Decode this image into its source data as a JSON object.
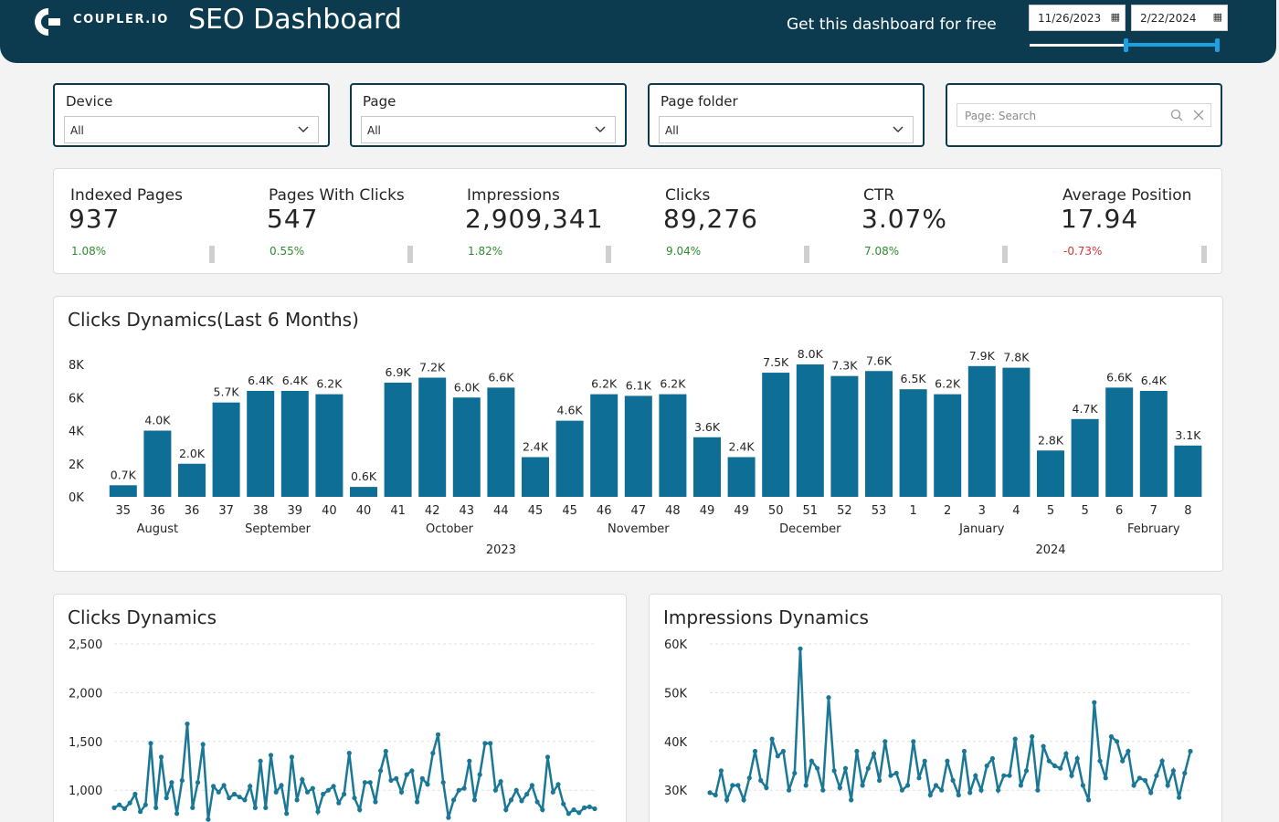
{
  "header": {
    "logo_text": "COUPLER.IO",
    "title": "SEO Dashboard",
    "cta": "Get this dashboard for free",
    "date_start": "11/26/2023",
    "date_end": "2/22/2024",
    "calendar_icon": "calendar-icon",
    "colors": {
      "bg": "#0c3a4f",
      "accent": "#1ba1e2"
    }
  },
  "filters": [
    {
      "label": "Device",
      "value": "All"
    },
    {
      "label": "Page",
      "value": "All"
    },
    {
      "label": "Page folder",
      "value": "All"
    }
  ],
  "search": {
    "placeholder": "Page: Search"
  },
  "kpis": [
    {
      "label": "Indexed Pages",
      "value": "937",
      "delta": "1.08%",
      "trend": "up"
    },
    {
      "label": "Pages With Clicks",
      "value": "547",
      "delta": "0.55%",
      "trend": "up"
    },
    {
      "label": "Impressions",
      "value": "2,909,341",
      "delta": "1.82%",
      "trend": "up"
    },
    {
      "label": "Clicks",
      "value": "89,276",
      "delta": "9.04%",
      "trend": "up"
    },
    {
      "label": "CTR",
      "value": "3.07%",
      "delta": "7.08%",
      "trend": "up"
    },
    {
      "label": "Average Position",
      "value": "17.94",
      "delta": "-0.73%",
      "trend": "down"
    }
  ],
  "colors": {
    "positive": "#2e8b2e",
    "negative": "#d13438",
    "series": "#0e6e96",
    "line": "#1a7896"
  },
  "panels": {
    "bar_title": "Clicks Dynamics(Last 6 Months)",
    "clicks_title": "Clicks Dynamics",
    "impressions_title": "Impressions Dynamics"
  },
  "chart_data": [
    {
      "type": "bar",
      "title": "Clicks Dynamics(Last 6 Months)",
      "categories": [
        "35",
        "36",
        "36",
        "37",
        "38",
        "39",
        "40",
        "40",
        "41",
        "42",
        "43",
        "44",
        "45",
        "45",
        "46",
        "47",
        "48",
        "49",
        "49",
        "50",
        "51",
        "52",
        "53",
        "1",
        "2",
        "3",
        "4",
        "5",
        "5",
        "6",
        "7",
        "8"
      ],
      "months": [
        {
          "name": "August",
          "from": 0,
          "to": 2
        },
        {
          "name": "September",
          "from": 2,
          "to": 7
        },
        {
          "name": "October",
          "from": 7,
          "to": 12
        },
        {
          "name": "November",
          "from": 13,
          "to": 17
        },
        {
          "name": "December",
          "from": 18,
          "to": 22
        },
        {
          "name": "January",
          "from": 23,
          "to": 27
        },
        {
          "name": "February",
          "from": 29,
          "to": 31
        }
      ],
      "years": [
        {
          "name": "2023",
          "from": 0,
          "to": 22
        },
        {
          "name": "2024",
          "from": 23,
          "to": 31
        }
      ],
      "values": [
        0.7,
        4.0,
        2.0,
        5.7,
        6.4,
        6.4,
        6.2,
        0.6,
        6.9,
        7.2,
        6.0,
        6.6,
        2.4,
        4.6,
        6.2,
        6.1,
        6.2,
        3.6,
        2.4,
        7.5,
        8.0,
        7.3,
        7.6,
        6.5,
        6.2,
        7.9,
        7.8,
        2.8,
        4.7,
        6.6,
        6.4,
        3.1
      ],
      "labels": [
        "0.7K",
        "4.0K",
        "2.0K",
        "5.7K",
        "6.4K",
        "6.4K",
        "6.2K",
        "0.6K",
        "6.9K",
        "7.2K",
        "6.0K",
        "6.6K",
        "2.4K",
        "4.6K",
        "6.2K",
        "6.1K",
        "6.2K",
        "3.6K",
        "2.4K",
        "7.5K",
        "8.0K",
        "7.3K",
        "7.6K",
        "6.5K",
        "6.2K",
        "7.9K",
        "7.8K",
        "2.8K",
        "4.7K",
        "6.6K",
        "6.4K",
        "3.1K"
      ],
      "yticks": [
        "0K",
        "2K",
        "4K",
        "6K",
        "8K"
      ],
      "ylim": [
        0,
        8
      ]
    },
    {
      "type": "line",
      "title": "Clicks Dynamics",
      "yticks": [
        "1,000",
        "1,500",
        "2,000",
        "2,500"
      ],
      "ylim": [
        800,
        2500
      ],
      "values": [
        820,
        850,
        810,
        870,
        960,
        780,
        850,
        1480,
        820,
        1340,
        920,
        1080,
        760,
        1100,
        1680,
        820,
        1080,
        1470,
        700,
        1040,
        980,
        1050,
        920,
        960,
        930,
        900,
        1040,
        820,
        1300,
        820,
        1360,
        980,
        1050,
        760,
        1340,
        900,
        1110,
        980,
        1020,
        780,
        960,
        1000,
        1040,
        870,
        960,
        1380,
        920,
        800,
        1080,
        1080,
        880,
        1200,
        1400,
        1100,
        1120,
        980,
        1160,
        1200,
        880,
        1120,
        1060,
        1380,
        1570,
        1080,
        720,
        900,
        1000,
        1020,
        1300,
        900,
        1160,
        1480,
        1480,
        1000,
        1090,
        800,
        900,
        1000,
        890,
        960,
        1050,
        880,
        800,
        1340,
        980,
        1060,
        860,
        760,
        800,
        770,
        820,
        830,
        810
      ],
      "ylabel": ""
    },
    {
      "type": "line",
      "title": "Impressions Dynamics",
      "yticks": [
        "30K",
        "40K",
        "50K",
        "60K"
      ],
      "ylim": [
        26000,
        60000
      ],
      "values": [
        29500,
        29000,
        34000,
        28000,
        31000,
        31000,
        28000,
        32500,
        38000,
        32000,
        30500,
        40500,
        37000,
        38000,
        30000,
        33500,
        59000,
        31000,
        36000,
        34500,
        30000,
        49000,
        34000,
        30500,
        34500,
        28000,
        38000,
        31000,
        34500,
        37500,
        32000,
        40000,
        33000,
        33500,
        30000,
        31000,
        40000,
        32500,
        36000,
        29000,
        31000,
        30000,
        36000,
        32000,
        29000,
        38000,
        29500,
        33000,
        30000,
        35000,
        36500,
        30000,
        33000,
        33000,
        40500,
        31000,
        34000,
        41000,
        30000,
        39000,
        36000,
        35000,
        34500,
        37500,
        33000,
        36500,
        31000,
        28000,
        48000,
        36000,
        32500,
        41000,
        40000,
        36000,
        38000,
        31000,
        32500,
        32000,
        29500,
        33000,
        36000,
        31000,
        34000,
        28500,
        33500,
        38000
      ],
      "ylabel": ""
    }
  ]
}
